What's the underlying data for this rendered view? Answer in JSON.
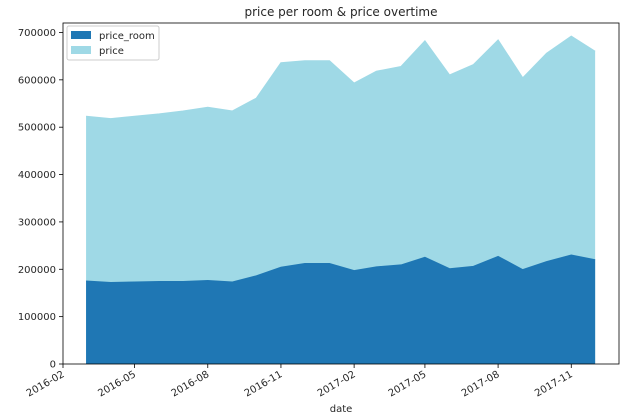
{
  "chart_data": {
    "type": "area",
    "stacked": false,
    "title": "price per room & price overtime",
    "xlabel": "date",
    "ylabel": "",
    "x": [
      "2016-03",
      "2016-04",
      "2016-05",
      "2016-06",
      "2016-07",
      "2016-08",
      "2016-09",
      "2016-10",
      "2016-11",
      "2016-12",
      "2017-01",
      "2017-02",
      "2017-03",
      "2017-04",
      "2017-05",
      "2017-06",
      "2017-07",
      "2017-08",
      "2017-09",
      "2017-10",
      "2017-11",
      "2017-12"
    ],
    "xlim": [
      "2016-02-01",
      "2017-12-31"
    ],
    "x_ticks": [
      "2016-02",
      "2016-05",
      "2016-08",
      "2016-11",
      "2017-02",
      "2017-05",
      "2017-08",
      "2017-11"
    ],
    "ylim": [
      0,
      720000
    ],
    "y_ticks": [
      0,
      100000,
      200000,
      300000,
      400000,
      500000,
      600000,
      700000
    ],
    "series": [
      {
        "name": "price",
        "color": "#9fd9e6",
        "values": [
          523000,
          518000,
          523000,
          528000,
          534000,
          542000,
          534000,
          561000,
          636000,
          640000,
          640000,
          593000,
          618000,
          628000,
          682000,
          610000,
          632000,
          684000,
          604000,
          656000,
          692000,
          660000
        ]
      },
      {
        "name": "price_room",
        "color": "#1f77b4",
        "values": [
          175000,
          172000,
          173000,
          174000,
          174000,
          176000,
          173000,
          186000,
          204000,
          212000,
          212000,
          197000,
          205000,
          209000,
          225000,
          201000,
          206000,
          227000,
          199000,
          216000,
          230000,
          220000
        ]
      }
    ],
    "legend": {
      "position": "top-left",
      "entries": [
        {
          "label": "price_room",
          "color": "#1f77b4"
        },
        {
          "label": "price",
          "color": "#9fd9e6"
        }
      ]
    },
    "grid": false
  }
}
